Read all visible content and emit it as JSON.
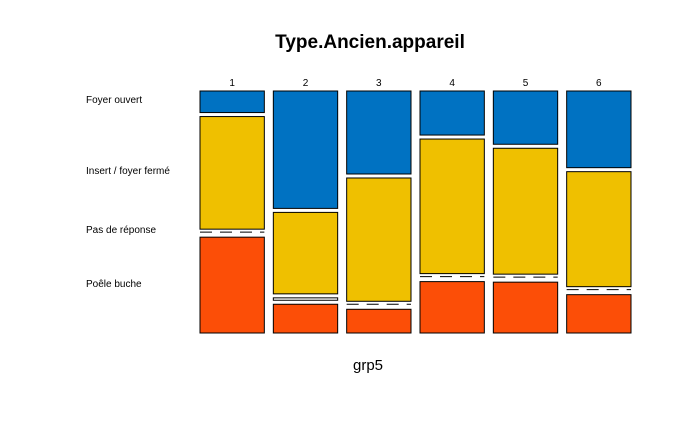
{
  "chart_data": {
    "type": "mosaic",
    "title": "Type.Ancien.appareil",
    "xlabel": "grp5",
    "ylabel": "",
    "categories": [
      "1",
      "2",
      "3",
      "4",
      "5",
      "6"
    ],
    "category_widths": [
      1,
      1,
      1,
      1,
      1,
      1
    ],
    "levels": [
      "Foyer ouvert",
      "Insert / foyer fermé",
      "Pas de réponse",
      "Poêle buche"
    ],
    "colors": {
      "Foyer ouvert": "#0072c2",
      "Insert / foyer fermé": "#efc000",
      "Pas de réponse": "#ffffff",
      "Poêle buche": "#fc4e07"
    },
    "series": [
      {
        "name": "Foyer ouvert",
        "values": [
          0.09,
          0.49,
          0.35,
          0.18,
          0.22,
          0.32
        ]
      },
      {
        "name": "Insert / foyer fermé",
        "values": [
          0.47,
          0.34,
          0.52,
          0.55,
          0.52,
          0.48
        ]
      },
      {
        "name": "Pas de réponse",
        "values": [
          0.0,
          0.01,
          0.0,
          0.0,
          0.0,
          0.0
        ]
      },
      {
        "name": "Poêle buche",
        "values": [
          0.4,
          0.12,
          0.1,
          0.21,
          0.21,
          0.16
        ]
      }
    ]
  }
}
